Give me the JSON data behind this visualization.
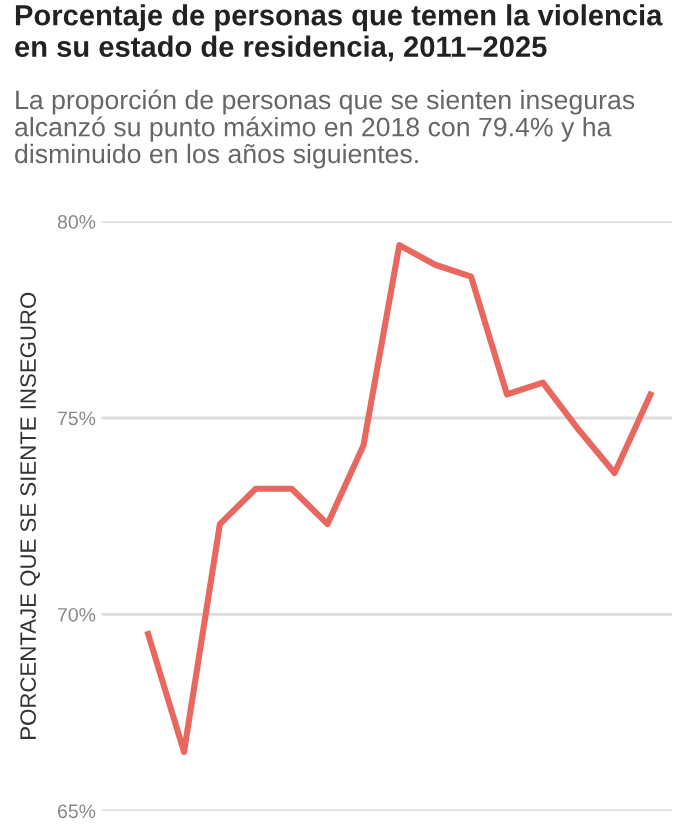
{
  "chart_data": {
    "type": "line",
    "title": "Porcentaje de personas que temen la violencia en su estado de residencia, 2011–2025",
    "subtitle": "La proporción de personas que se sienten inseguras alcanzó su punto máximo en 2018 con 79.4% y ha disminuido en los años siguientes.",
    "ylabel": "PORCENTAJE QUE SE SIENTE INSEGURO",
    "categories": [
      null,
      null,
      null,
      null,
      null,
      null,
      null,
      null,
      null,
      null,
      null,
      null,
      null,
      null,
      null
    ],
    "series": [
      {
        "color": "#e8675f",
        "values": [
          69.5,
          66.5,
          72.3,
          73.2,
          73.2,
          72.3,
          74.3,
          79.4,
          78.9,
          78.6,
          75.6,
          75.9,
          74.7,
          73.6,
          75.6
        ]
      }
    ],
    "ylim": [
      65,
      80
    ],
    "yticks": [
      {
        "value": 65,
        "label": "65%"
      },
      {
        "value": 70,
        "label": "70%"
      },
      {
        "value": 75,
        "label": "75%"
      },
      {
        "value": 80,
        "label": "80%"
      }
    ],
    "grid": "y",
    "legend": false,
    "marker": "none",
    "line_style": "solid",
    "tick_labels": "y"
  }
}
